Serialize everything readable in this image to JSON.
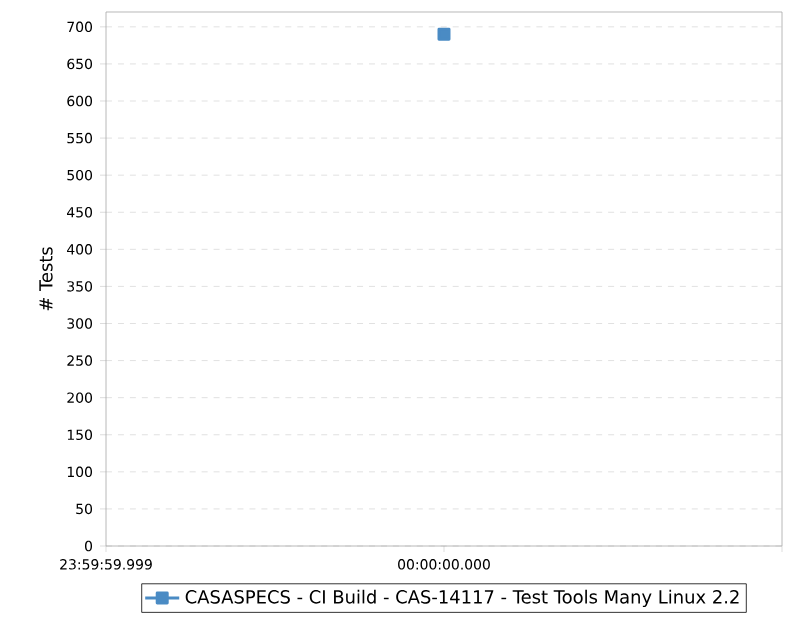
{
  "chart_data": {
    "type": "line",
    "ylabel": "# Tests",
    "categories": [
      "23:59:59.999",
      "00:00:00.000",
      null
    ],
    "series": [
      {
        "name": "CASASPECS - CI Build - CAS-14117 - Test Tools Many Linux 2.2",
        "color": "#4a8bc4",
        "values": [
          null,
          690,
          null
        ]
      }
    ],
    "ylim": [
      0,
      720
    ],
    "yticks": [
      0,
      50,
      100,
      150,
      200,
      250,
      300,
      350,
      400,
      450,
      500,
      550,
      600,
      650,
      700
    ],
    "grid": "y",
    "legend": "bottom",
    "marker": "square"
  }
}
